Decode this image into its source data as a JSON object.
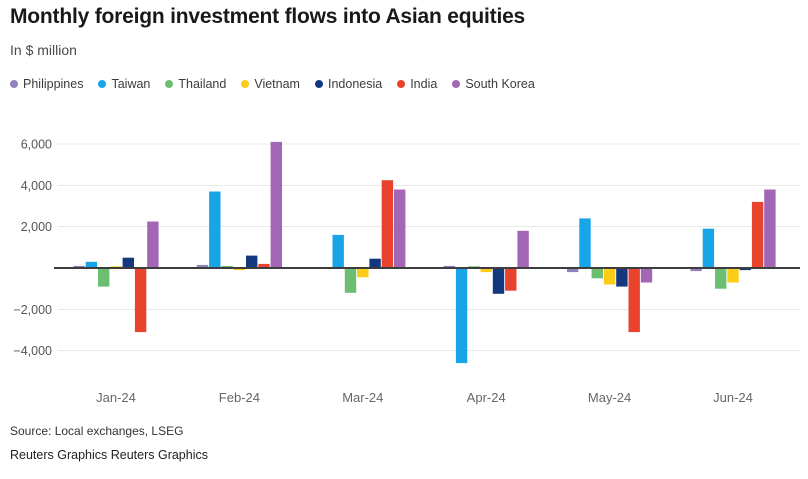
{
  "title": "Monthly foreign investment flows into Asian equities",
  "subtitle": "In $ million",
  "source": "Source: Local exchanges, LSEG",
  "credit": "Reuters Graphics Reuters Graphics",
  "chart_data": {
    "type": "bar",
    "title": "Monthly foreign investment flows into Asian equities",
    "ylabel": "In $ million",
    "categories": [
      "Jan-24",
      "Feb-24",
      "Mar-24",
      "Apr-24",
      "May-24",
      "Jun-24"
    ],
    "series": [
      {
        "name": "Philippines",
        "color": "#9181bd",
        "values": [
          100,
          150,
          -50,
          100,
          -200,
          -150
        ]
      },
      {
        "name": "Taiwan",
        "color": "#18a5e8",
        "values": [
          300,
          3700,
          1600,
          -4600,
          2400,
          1900
        ]
      },
      {
        "name": "Thailand",
        "color": "#6cbe70",
        "values": [
          -900,
          100,
          -1200,
          80,
          -500,
          -1000
        ]
      },
      {
        "name": "Vietnam",
        "color": "#fccc18",
        "values": [
          80,
          -100,
          -450,
          -200,
          -800,
          -700
        ]
      },
      {
        "name": "Indonesia",
        "color": "#14387e",
        "values": [
          500,
          600,
          450,
          -1250,
          -900,
          -100
        ]
      },
      {
        "name": "India",
        "color": "#e8432c",
        "values": [
          -3100,
          200,
          4250,
          -1100,
          -3100,
          3200
        ]
      },
      {
        "name": "South Korea",
        "color": "#a266b5",
        "values": [
          2250,
          6100,
          3800,
          1800,
          -700,
          3800
        ]
      }
    ],
    "yticks": [
      6000,
      4000,
      2000,
      -2000,
      -4000
    ],
    "ylim": [
      -4800,
      6300
    ],
    "grid": true,
    "legend_position": "top",
    "grid_color": "#e8e8e8",
    "zero_axis_color": "#3d3d3d"
  }
}
